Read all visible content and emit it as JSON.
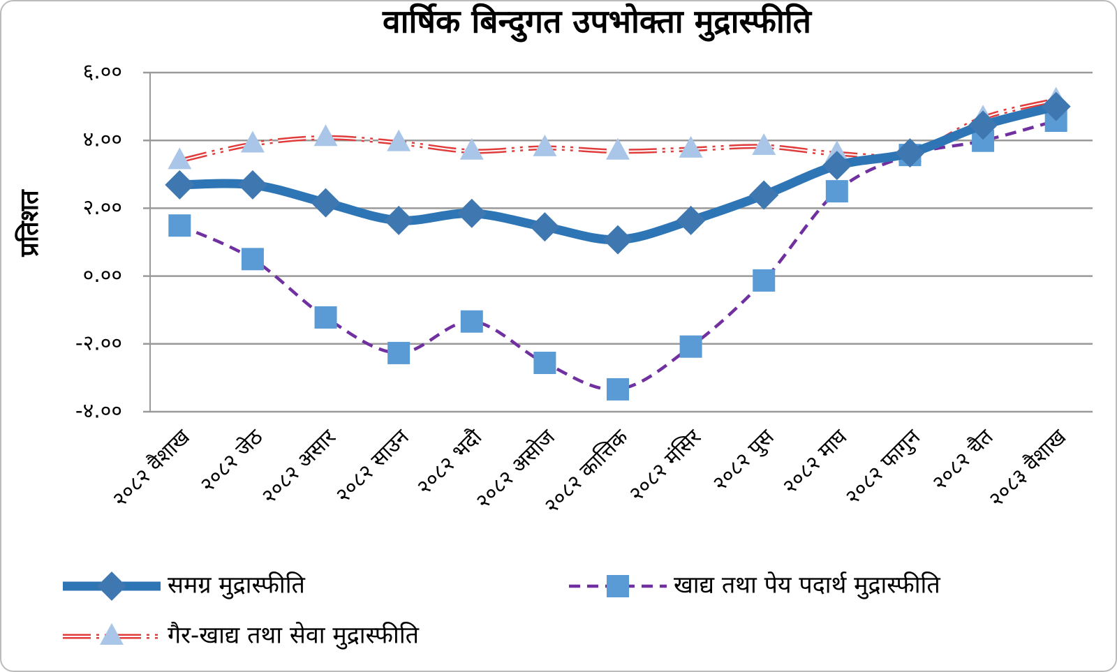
{
  "chart_data": {
    "type": "line",
    "title": "वार्षिक बिन्दुगत उपभोक्ता मुद्रास्फीति",
    "y_label": "प्रतिशत",
    "categories": [
      "२०८२ वैशाख",
      "२०८२ जेठ",
      "२०८२ असार",
      "२०८२ साउन",
      "२०८२ भदौ",
      "२०८२ असोज",
      "२०८२ कात्तिक",
      "२०८२ मंसिर",
      "२०८२ पुस",
      "२०८२ माघ",
      "२०८२ फागुन",
      "२०८२ चैत",
      "२०८३ वैशाख"
    ],
    "series": [
      {
        "name": "समग्र मुद्रास्फीति",
        "color": "#2e75b6",
        "marker_color": "#3f78b0",
        "marker": "diamond",
        "values": [
          2.69,
          2.69,
          2.16,
          1.64,
          1.85,
          1.45,
          1.07,
          1.64,
          2.39,
          3.26,
          3.63,
          4.45,
          5.0
        ]
      },
      {
        "name": "खाद्य तथा पेय पदार्थ मुद्रास्फीति",
        "color": "#7030a0",
        "marker_color": "#5b9bd5",
        "marker": "square",
        "values": [
          1.49,
          0.5,
          -1.22,
          -2.27,
          -1.34,
          -2.56,
          -3.34,
          -2.08,
          -0.13,
          2.5,
          3.57,
          3.99,
          4.58
        ]
      },
      {
        "name": "गैर-खाद्य तथा सेवा मुद्रास्फीति",
        "color": "#e03c3c",
        "marker_color": "#a9c6e8",
        "marker": "triangle",
        "values": [
          3.4,
          3.89,
          4.08,
          3.93,
          3.68,
          3.78,
          3.68,
          3.74,
          3.82,
          3.61,
          3.61,
          4.66,
          5.19
        ]
      }
    ],
    "ylim": [
      -4,
      6
    ],
    "yticks": [
      {
        "value": -4,
        "label": "-४.००"
      },
      {
        "value": -2,
        "label": "-२.००"
      },
      {
        "value": 0,
        "label": "०.००"
      },
      {
        "value": 2,
        "label": "२.००"
      },
      {
        "value": 4,
        "label": "४.००"
      },
      {
        "value": 6,
        "label": "६.००"
      }
    ],
    "grid": true,
    "legend": "bottom"
  }
}
